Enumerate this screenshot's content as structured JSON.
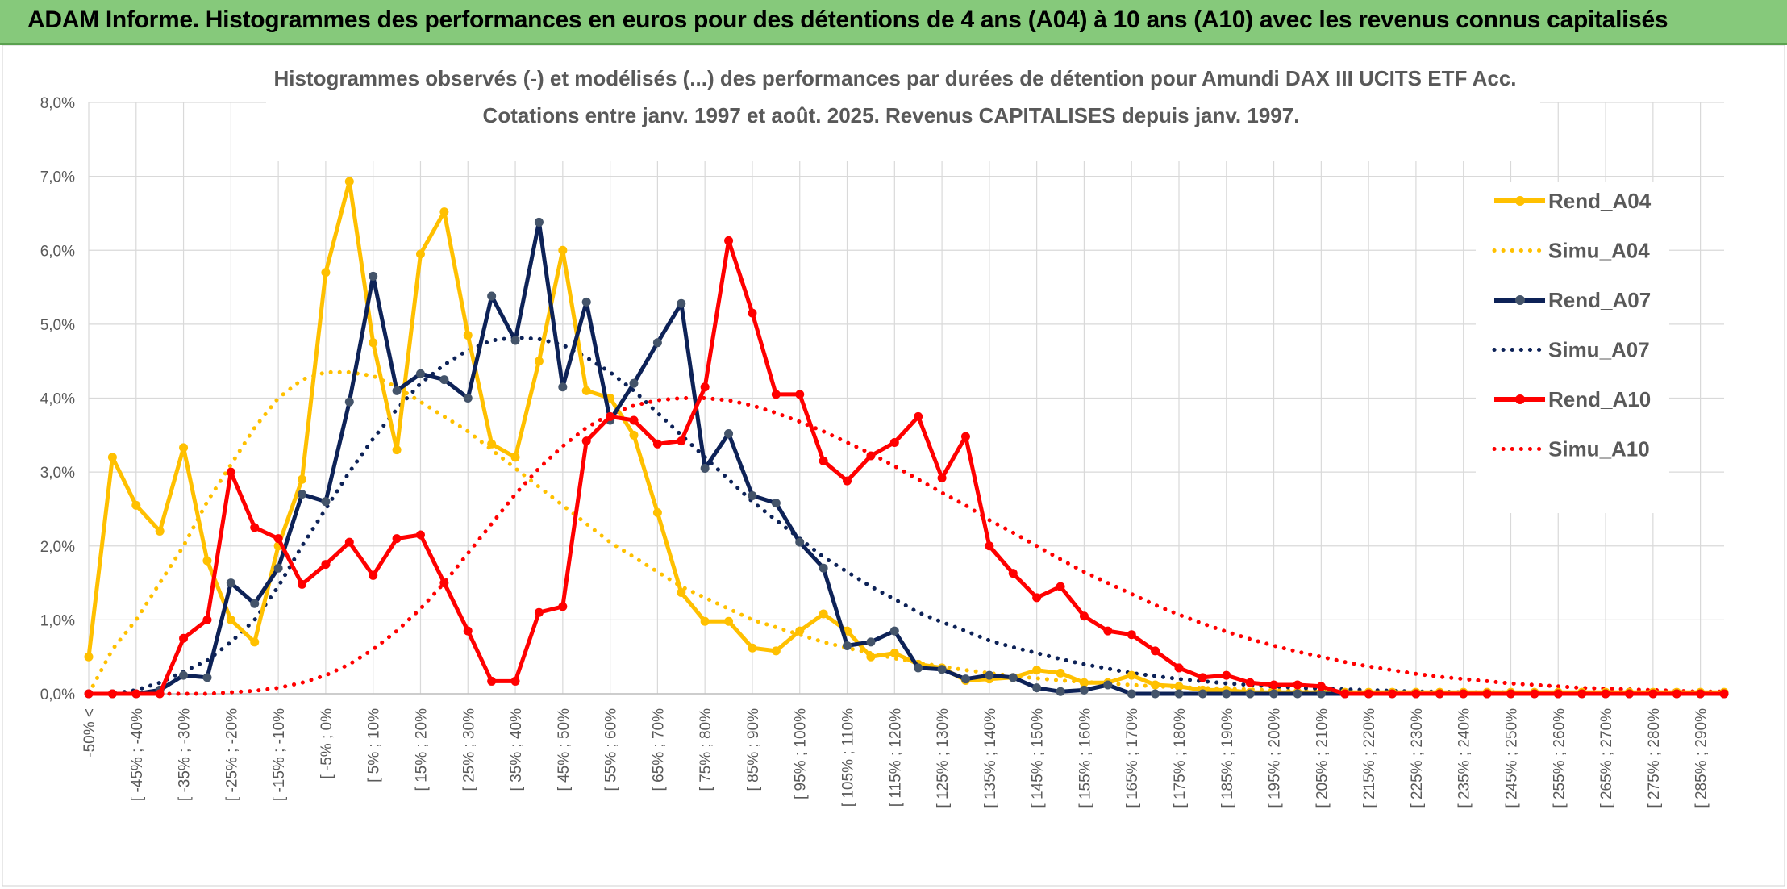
{
  "banner": {
    "title": "ADAM Informe. Histogrammes des performances en euros pour des détentions de 4 ans (A04) à 10 ans (A10) avec les revenus connus capitalisés"
  },
  "chart_data": {
    "type": "line",
    "title": "Histogrammes observés (-) et modélisés (...) des performances par durées de détention pour Amundi DAX III UCITS ETF Acc.",
    "subtitle": "Cotations entre janv. 1997 et août. 2025. Revenus CAPITALISES depuis janv. 1997.",
    "ylim": [
      0,
      8
    ],
    "yticks": [
      "0,0%",
      "1,0%",
      "2,0%",
      "3,0%",
      "4,0%",
      "5,0%",
      "6,0%",
      "7,0%",
      "8,0%"
    ],
    "grid": true,
    "legend_position": "right",
    "x_labels": [
      "-50% <",
      "[ -45% ; -40%",
      "[ -35% ; -30%",
      "[ -25% ; -20%",
      "[ -15% ; -10%",
      "[ -5% ; 0%",
      "[ 5% ; 10%",
      "[ 15% ; 20%",
      "[ 25% ; 30%",
      "[ 35% ; 40%",
      "[ 45% ; 50%",
      "[ 55% ; 60%",
      "[ 65% ; 70%",
      "[ 75% ; 80%",
      "[ 85% ; 90%",
      "[ 95% ; 100%",
      "[ 105% ; 110%",
      "[ 115% ; 120%",
      "[ 125% ; 130%",
      "[ 135% ; 140%",
      "[ 145% ; 150%",
      "[ 155% ; 160%",
      "[ 165% ; 170%",
      "[ 175% ; 180%",
      "[ 185% ; 190%",
      "[ 195% ; 200%",
      "[ 205% ; 210%",
      "[ 215% ; 220%",
      "[ 225% ; 230%",
      "[ 235% ; 240%",
      "[ 245% ; 250%",
      "[ 255% ; 260%",
      "[ 265% ; 270%",
      "[ 275% ; 280%",
      "[ 285% ; 290%"
    ],
    "series": [
      {
        "name": "Rend_A04",
        "color": "#ffc000",
        "style": "solid",
        "values": [
          0.5,
          3.2,
          2.55,
          2.2,
          3.33,
          1.8,
          1.0,
          0.7,
          2.0,
          2.9,
          5.7,
          6.93,
          4.75,
          3.3,
          5.95,
          6.52,
          4.85,
          3.38,
          3.2,
          4.5,
          6.0,
          4.1,
          4.0,
          3.5,
          2.45,
          1.37,
          0.98,
          0.98,
          0.62,
          0.58,
          0.85,
          1.08,
          0.85,
          0.5,
          0.55,
          0.4,
          0.35,
          0.18,
          0.2,
          0.22,
          0.32,
          0.28,
          0.15,
          0.15,
          0.25,
          0.12,
          0.1,
          0.05,
          0.05,
          0.02,
          0.02,
          0.02,
          0.02,
          0.02,
          0.02,
          0.02,
          0.02,
          0.02,
          0.02,
          0.02,
          0.02,
          0.02,
          0.02,
          0.02,
          0.02,
          0.02,
          0.02,
          0.02,
          0.02,
          0.02
        ]
      },
      {
        "name": "Simu_A04",
        "color": "#ffc000",
        "style": "dotted",
        "values": [
          0.0,
          0.6,
          1.0,
          1.5,
          2.0,
          2.6,
          3.1,
          3.6,
          4.0,
          4.25,
          4.35,
          4.35,
          4.3,
          4.15,
          3.95,
          3.75,
          3.55,
          3.3,
          3.05,
          2.8,
          2.55,
          2.3,
          2.05,
          1.85,
          1.65,
          1.45,
          1.3,
          1.15,
          1.0,
          0.9,
          0.8,
          0.7,
          0.62,
          0.55,
          0.48,
          0.42,
          0.37,
          0.32,
          0.28,
          0.24,
          0.21,
          0.18,
          0.16,
          0.14,
          0.12,
          0.1,
          0.09,
          0.08,
          0.07,
          0.06,
          0.05,
          0.04,
          0.04,
          0.03,
          0.03,
          0.02,
          0.02,
          0.02,
          0.02,
          0.01,
          0.01,
          0.01,
          0.01,
          0.01,
          0.01,
          0.01,
          0.01,
          0.01,
          0.01,
          0.01
        ]
      },
      {
        "name": "Rend_A07",
        "color": "#0d2257",
        "style": "solid",
        "values": [
          0.0,
          0.0,
          0.0,
          0.05,
          0.25,
          0.22,
          1.5,
          1.22,
          1.7,
          2.7,
          2.6,
          3.95,
          5.65,
          4.1,
          4.33,
          4.25,
          4.0,
          5.38,
          4.78,
          6.38,
          4.15,
          5.3,
          3.7,
          4.2,
          4.75,
          5.28,
          3.05,
          3.52,
          2.68,
          2.58,
          2.05,
          1.7,
          0.65,
          0.7,
          0.85,
          0.35,
          0.33,
          0.2,
          0.25,
          0.22,
          0.08,
          0.03,
          0.05,
          0.12,
          0.0,
          0.0,
          0.0,
          0.0,
          0.0,
          0.0,
          0.0,
          0.0,
          0.0,
          0.0,
          0.0,
          0.0,
          0.0,
          0.0,
          0.0,
          0.0,
          0.0,
          0.0,
          0.0,
          0.0,
          0.0,
          0.0,
          0.0,
          0.0,
          0.0,
          0.0
        ]
      },
      {
        "name": "Simu_A07",
        "color": "#0d2257",
        "style": "dotted",
        "values": [
          0.0,
          0.0,
          0.05,
          0.15,
          0.3,
          0.45,
          0.7,
          1.0,
          1.45,
          2.0,
          2.5,
          3.0,
          3.45,
          3.85,
          4.2,
          4.45,
          4.65,
          4.78,
          4.82,
          4.8,
          4.72,
          4.55,
          4.35,
          4.1,
          3.8,
          3.5,
          3.2,
          2.9,
          2.6,
          2.35,
          2.1,
          1.85,
          1.65,
          1.45,
          1.28,
          1.1,
          0.97,
          0.85,
          0.72,
          0.63,
          0.55,
          0.47,
          0.4,
          0.34,
          0.28,
          0.24,
          0.2,
          0.17,
          0.14,
          0.12,
          0.1,
          0.08,
          0.07,
          0.06,
          0.05,
          0.04,
          0.03,
          0.03,
          0.02,
          0.02,
          0.02,
          0.01,
          0.01,
          0.01,
          0.01,
          0.01,
          0.01,
          0.01,
          0.01,
          0.01
        ]
      },
      {
        "name": "Rend_A10",
        "color": "#ff0000",
        "style": "solid",
        "values": [
          0.0,
          0.0,
          0.0,
          0.0,
          0.75,
          1.0,
          3.0,
          2.25,
          2.1,
          1.48,
          1.75,
          2.05,
          1.6,
          2.1,
          2.15,
          1.5,
          0.85,
          0.17,
          0.17,
          1.1,
          1.18,
          3.42,
          3.75,
          3.7,
          3.38,
          3.42,
          4.15,
          6.13,
          5.15,
          4.05,
          4.05,
          3.15,
          2.88,
          3.22,
          3.4,
          3.75,
          2.92,
          3.48,
          2.0,
          1.63,
          1.3,
          1.45,
          1.05,
          0.85,
          0.8,
          0.58,
          0.35,
          0.22,
          0.25,
          0.15,
          0.12,
          0.12,
          0.1,
          0.0,
          0.0,
          0.0,
          0.0,
          0.0,
          0.0,
          0.0,
          0.0,
          0.0,
          0.0,
          0.0,
          0.0,
          0.0,
          0.0,
          0.0,
          0.0,
          0.0
        ]
      },
      {
        "name": "Simu_A10",
        "color": "#ff0000",
        "style": "dotted",
        "values": [
          0.0,
          0.0,
          0.0,
          0.0,
          0.0,
          0.0,
          0.02,
          0.04,
          0.08,
          0.15,
          0.25,
          0.4,
          0.6,
          0.85,
          1.15,
          1.5,
          1.9,
          2.3,
          2.7,
          3.05,
          3.35,
          3.6,
          3.78,
          3.9,
          3.97,
          4.0,
          4.0,
          3.97,
          3.9,
          3.8,
          3.68,
          3.55,
          3.4,
          3.25,
          3.08,
          2.9,
          2.72,
          2.55,
          2.35,
          2.18,
          2.0,
          1.82,
          1.65,
          1.5,
          1.35,
          1.2,
          1.07,
          0.95,
          0.84,
          0.74,
          0.65,
          0.57,
          0.5,
          0.43,
          0.37,
          0.32,
          0.27,
          0.23,
          0.2,
          0.17,
          0.14,
          0.12,
          0.1,
          0.08,
          0.07,
          0.06,
          0.05,
          0.04,
          0.03,
          0.03
        ]
      }
    ]
  }
}
